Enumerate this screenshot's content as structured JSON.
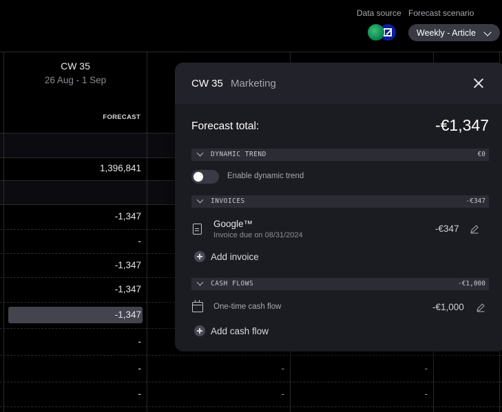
{
  "header": {
    "data_source_label": "Data source",
    "forecast_scenario_label": "Forecast scenario",
    "scenario_value": "Weekly - Article",
    "data_source_icons": [
      "bank-green-icon",
      "bank-blue-icon"
    ]
  },
  "table": {
    "column": {
      "week": "CW 35",
      "dates": "26 Aug - 1 Sep",
      "type_label": "FORECAST"
    },
    "col1_values": [
      "1,396,841",
      "-1,347",
      "-",
      "-1,347",
      "-1,347",
      "-1,347",
      "-",
      "-",
      "-"
    ],
    "col2_values": [
      "-",
      "-"
    ],
    "col3_values": [
      "-",
      "-"
    ]
  },
  "panel": {
    "week": "CW 35",
    "category": "Marketing",
    "total_label": "Forecast total:",
    "total_value": "-€1,347",
    "sections": {
      "dynamic_trend": {
        "title": "DYNAMIC TREND",
        "amount": "€0"
      },
      "invoices": {
        "title": "INVOICES",
        "amount": "-€347"
      },
      "cash_flows": {
        "title": "CASH FLOWS",
        "amount": "-€1,000"
      }
    },
    "toggle_label": "Enable dynamic trend",
    "toggle_enabled": false,
    "invoice": {
      "title": "Google™",
      "subtitle": "Invoice due on 08/31/2024",
      "amount": "-€347"
    },
    "add_invoice_label": "Add invoice",
    "cash_flow": {
      "title": "One-time cash flow",
      "amount": "-€1,000"
    },
    "add_cash_flow_label": "Add cash flow"
  },
  "colors": {
    "background": "#000000",
    "panel": "#1b1b22",
    "panel_header": "#22222a",
    "section_bar": "#2c2c35",
    "highlight_cell": "#44444e"
  }
}
